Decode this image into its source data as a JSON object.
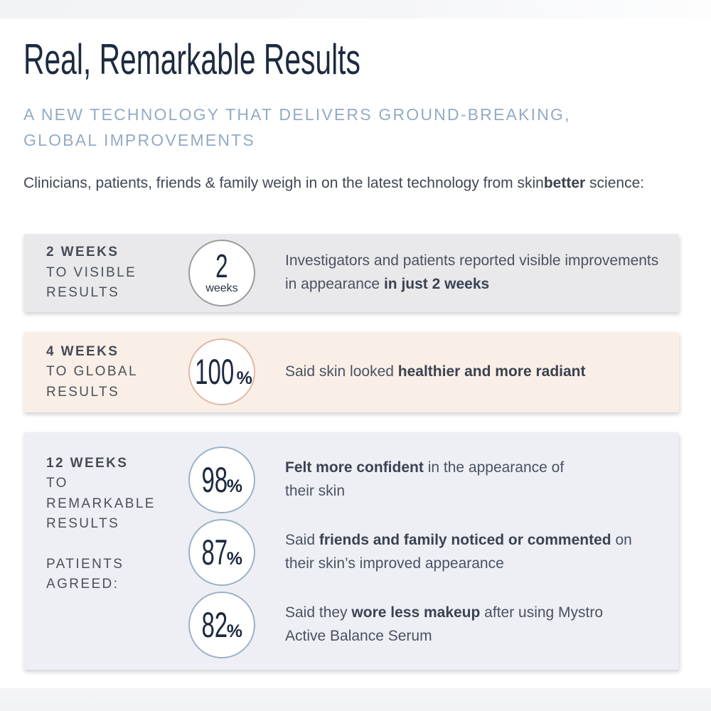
{
  "colors": {
    "title-color": "#1d2a40",
    "subtitle-color": "#93abc4",
    "card-gray-bg": "#e9e9eb",
    "card-cream-bg": "#f9efe6",
    "card-blue-bg": "#edeff4",
    "circle-gray-border": "#9b9b9b",
    "circle-salmon-border": "#e3b7a6",
    "circle-blue-border": "#9db1c5"
  },
  "page": {
    "title": "Real, Remarkable Results",
    "subtitle_line1": "A NEW TECHNOLOGY THAT DELIVERS GROUND-BREAKING,",
    "subtitle_line2": "GLOBAL IMPROVEMENTS",
    "intro_pre": "Clinicians, patients, friends & family weigh in on the latest technology from skin",
    "intro_bold": "better",
    "intro_post": " science:"
  },
  "cards": [
    {
      "label_bold": "2 WEEKS",
      "label_rest": "TO VISIBLE RESULTS",
      "stat_value": "2",
      "stat_unit": "weeks",
      "statement_pre": "Investigators and patients reported visible improvements in appearance ",
      "statement_bold": "in just 2 weeks",
      "statement_post": ""
    },
    {
      "label_bold": "4 WEEKS",
      "label_rest": "TO GLOBAL RESULTS",
      "stat_value": "100",
      "stat_unit": "%",
      "statement_pre": "Said skin looked ",
      "statement_bold": "healthier and more radiant",
      "statement_post": ""
    },
    {
      "label_bold": "12 WEEKS",
      "label_rest": "TO REMARKABLE RESULTS",
      "label_sub": "PATIENTS AGREED:",
      "rows": [
        {
          "value": "98",
          "unit": "%",
          "pre": "",
          "bold": "Felt more confident",
          "post": " in the appearance of their skin"
        },
        {
          "value": "87",
          "unit": "%",
          "pre": "Said ",
          "bold": "friends and family noticed or commented",
          "post": " on their skin’s improved appearance"
        },
        {
          "value": "82",
          "unit": "%",
          "pre": "Said they ",
          "bold": "wore less makeup",
          "post": " after using Mystro Active Balance Serum"
        }
      ]
    }
  ]
}
